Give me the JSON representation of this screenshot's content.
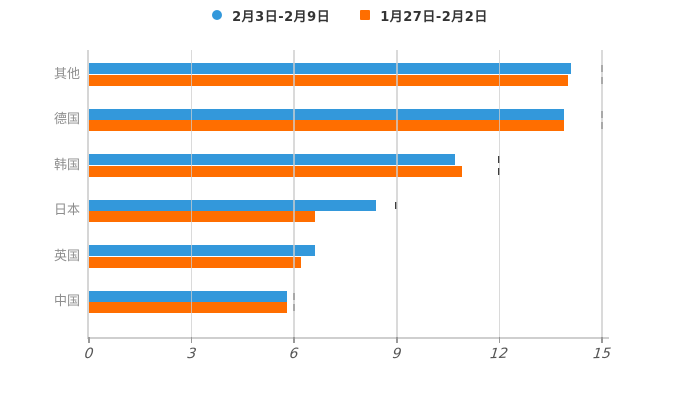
{
  "background": "#ffffff",
  "legend": {
    "items": [
      {
        "label": "2月3日-2月9日",
        "color": "#3398DB",
        "marker": "circle"
      },
      {
        "label": "1月27日-2月2日",
        "color": "#FF6E00",
        "marker": "square"
      }
    ]
  },
  "chart_data": {
    "type": "bar",
    "orientation": "horizontal",
    "title": "",
    "xlabel": "",
    "ylabel": "",
    "categories": [
      "其他",
      "德国",
      "韩国",
      "日本",
      "英国",
      "中国"
    ],
    "series": [
      {
        "name": "2月3日-2月9日",
        "color": "#3398DB",
        "values": [
          14.1,
          13.9,
          10.7,
          8.4,
          6.6,
          5.8
        ]
      },
      {
        "name": "1月27日-2月2日",
        "color": "#FF6E00",
        "values": [
          14.0,
          13.9,
          10.9,
          6.6,
          6.2,
          5.8
        ]
      }
    ],
    "xlim": [
      0,
      15
    ],
    "x_ticks": [
      0,
      3,
      6,
      9,
      12,
      15
    ],
    "grid": true,
    "legend_position": "top",
    "axis_color": "#cfcfcf",
    "gridline_color": "#d5d5d5",
    "tick_label_color": "#555555",
    "category_label_color": "#8e8e8e"
  }
}
